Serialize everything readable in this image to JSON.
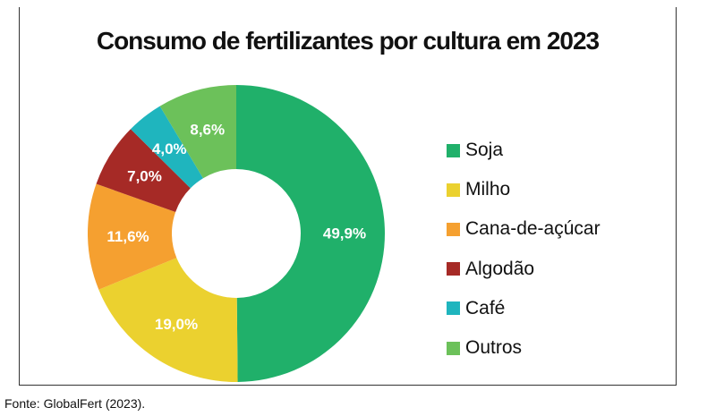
{
  "chart_data": {
    "type": "pie",
    "variant": "donut",
    "title": "Consumo de fertilizantes por cultura em 2023",
    "categories": [
      "Soja",
      "Milho",
      "Cana-de-açúcar",
      "Algodão",
      "Café",
      "Outros"
    ],
    "values": [
      49.9,
      19.0,
      11.6,
      7.0,
      4.0,
      8.6
    ],
    "labels": [
      "49,9%",
      "19,0%",
      "11,6%",
      "7,0%",
      "4,0%",
      "8,6%"
    ],
    "colors": [
      "#20b06a",
      "#ebd12f",
      "#f5a030",
      "#a62a26",
      "#1fb5be",
      "#6cc15a"
    ],
    "legend_position": "right"
  },
  "footer": "Fonte: GlobalFert (2023)."
}
